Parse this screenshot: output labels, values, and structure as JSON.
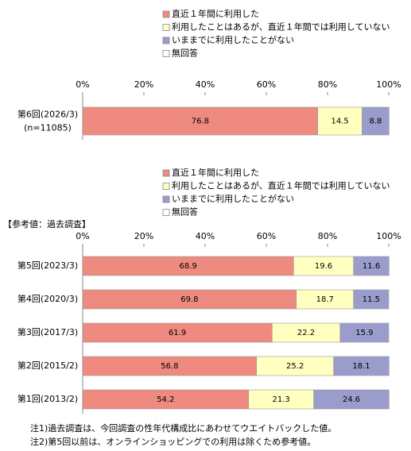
{
  "chart_data": [
    {
      "type": "bar",
      "orientation": "horizontal",
      "stacked": true,
      "categories": [
        "第6回(2026/3)"
      ],
      "sample_labels": [
        "(n=11085)"
      ],
      "series": [
        {
          "name": "直近１年間に利用した",
          "color": "#ee8a7f",
          "values": [
            76.8
          ]
        },
        {
          "name": "利用したことはあるが、直近１年間では利用していない",
          "color": "#ffffc0",
          "values": [
            14.5
          ]
        },
        {
          "name": "いままでに利用したことがない",
          "color": "#9a9ccc",
          "values": [
            8.8
          ]
        },
        {
          "name": "無回答",
          "color": "#ffffff",
          "values": [
            0
          ]
        }
      ],
      "xlim": [
        0,
        100
      ],
      "xticks": [
        {
          "value": 0,
          "label": "0%"
        },
        {
          "value": 20,
          "label": "20%"
        },
        {
          "value": 40,
          "label": "40%"
        },
        {
          "value": 60,
          "label": "60%"
        },
        {
          "value": 80,
          "label": "80%"
        },
        {
          "value": 100,
          "label": "100%"
        }
      ]
    },
    {
      "type": "bar",
      "orientation": "horizontal",
      "stacked": true,
      "subtitle": "【参考値：過去調査】",
      "categories": [
        "第5回(2023/3)",
        "第4回(2020/3)",
        "第3回(2017/3)",
        "第2回(2015/2)",
        "第1回(2013/2)"
      ],
      "series": [
        {
          "name": "直近１年間に利用した",
          "color": "#ee8a7f",
          "values": [
            68.9,
            69.8,
            61.9,
            56.8,
            54.2
          ]
        },
        {
          "name": "利用したことはあるが、直近１年間では利用していない",
          "color": "#ffffc0",
          "values": [
            19.6,
            18.7,
            22.2,
            25.2,
            21.3
          ]
        },
        {
          "name": "いままでに利用したことがない",
          "color": "#9a9ccc",
          "values": [
            11.6,
            11.5,
            15.9,
            18.1,
            24.6
          ]
        },
        {
          "name": "無回答",
          "color": "#ffffff",
          "values": [
            0,
            0,
            0,
            0,
            0
          ]
        }
      ],
      "xlim": [
        0,
        100
      ],
      "xticks": [
        {
          "value": 0,
          "label": "0%"
        },
        {
          "value": 20,
          "label": "20%"
        },
        {
          "value": 40,
          "label": "40%"
        },
        {
          "value": 60,
          "label": "60%"
        },
        {
          "value": 80,
          "label": "80%"
        },
        {
          "value": 100,
          "label": "100%"
        }
      ]
    }
  ],
  "notes": [
    "注1)過去調査は、今回調査の性年代構成比にあわせてウエイトバックした値。",
    "注2)第5回以前は、オンラインショッピングでの利用は除くため参考値。"
  ]
}
